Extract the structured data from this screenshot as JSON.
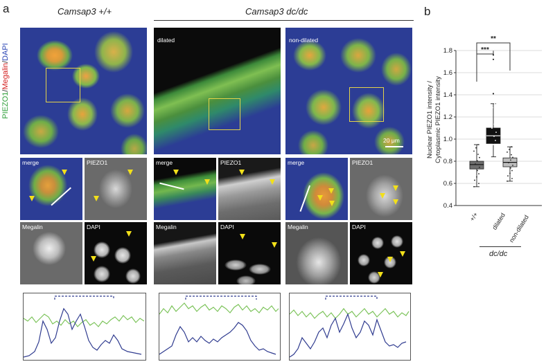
{
  "panel_a": {
    "letter": "a",
    "side_label": {
      "p1": "PIEZO1",
      "sep1": "/",
      "p2": "Megalin",
      "sep2": "/",
      "p3": "DAPI"
    },
    "col_wt": "Camsap3 +/+",
    "col_mut": "Camsap3 dc/dc",
    "dilated": "dilated",
    "non_dilated": "non-dilated",
    "scale": "20 μm",
    "tiles": {
      "merge": "merge",
      "piezo1": "PIEZO1",
      "megalin": "Megalin",
      "dapi": "DAPI"
    }
  },
  "panel_b": {
    "letter": "b",
    "chart_data": {
      "type": "box",
      "ylabel_line1": "Nuclear PIEZO1 intensity /",
      "ylabel_line2": "Cytoplasmic PIEZO1 intensity",
      "ylim": [
        0.4,
        1.8
      ],
      "yticks": [
        0.4,
        0.6,
        0.8,
        1.0,
        1.2,
        1.4,
        1.6,
        1.8
      ],
      "grid": true,
      "categories": [
        "+/+",
        "dilated",
        "non-dilated"
      ],
      "group_label": "dc/dc",
      "boxes": [
        {
          "name": "+/+",
          "min": 0.57,
          "q1": 0.73,
          "median": 0.77,
          "q3": 0.8,
          "max": 0.95,
          "color": "#6e6e6e",
          "outliers": []
        },
        {
          "name": "dilated",
          "min": 0.84,
          "q1": 0.96,
          "median": 1.03,
          "q3": 1.1,
          "max": 1.32,
          "color": "#111111",
          "outliers": [
            1.41,
            1.72,
            1.76
          ]
        },
        {
          "name": "non-dilated",
          "min": 0.62,
          "q1": 0.75,
          "median": 0.79,
          "q3": 0.83,
          "max": 0.93,
          "color": "#bdbdbd",
          "outliers": []
        }
      ],
      "significance": [
        {
          "from": 0,
          "to": 1,
          "label": "***"
        },
        {
          "from": 0,
          "to": 2,
          "label": "**"
        }
      ]
    }
  },
  "colors": {
    "green": "#7cc35a",
    "blue": "#2f3b8f",
    "yellow": "#f2e01a",
    "bracket": "#2f3b8f"
  }
}
